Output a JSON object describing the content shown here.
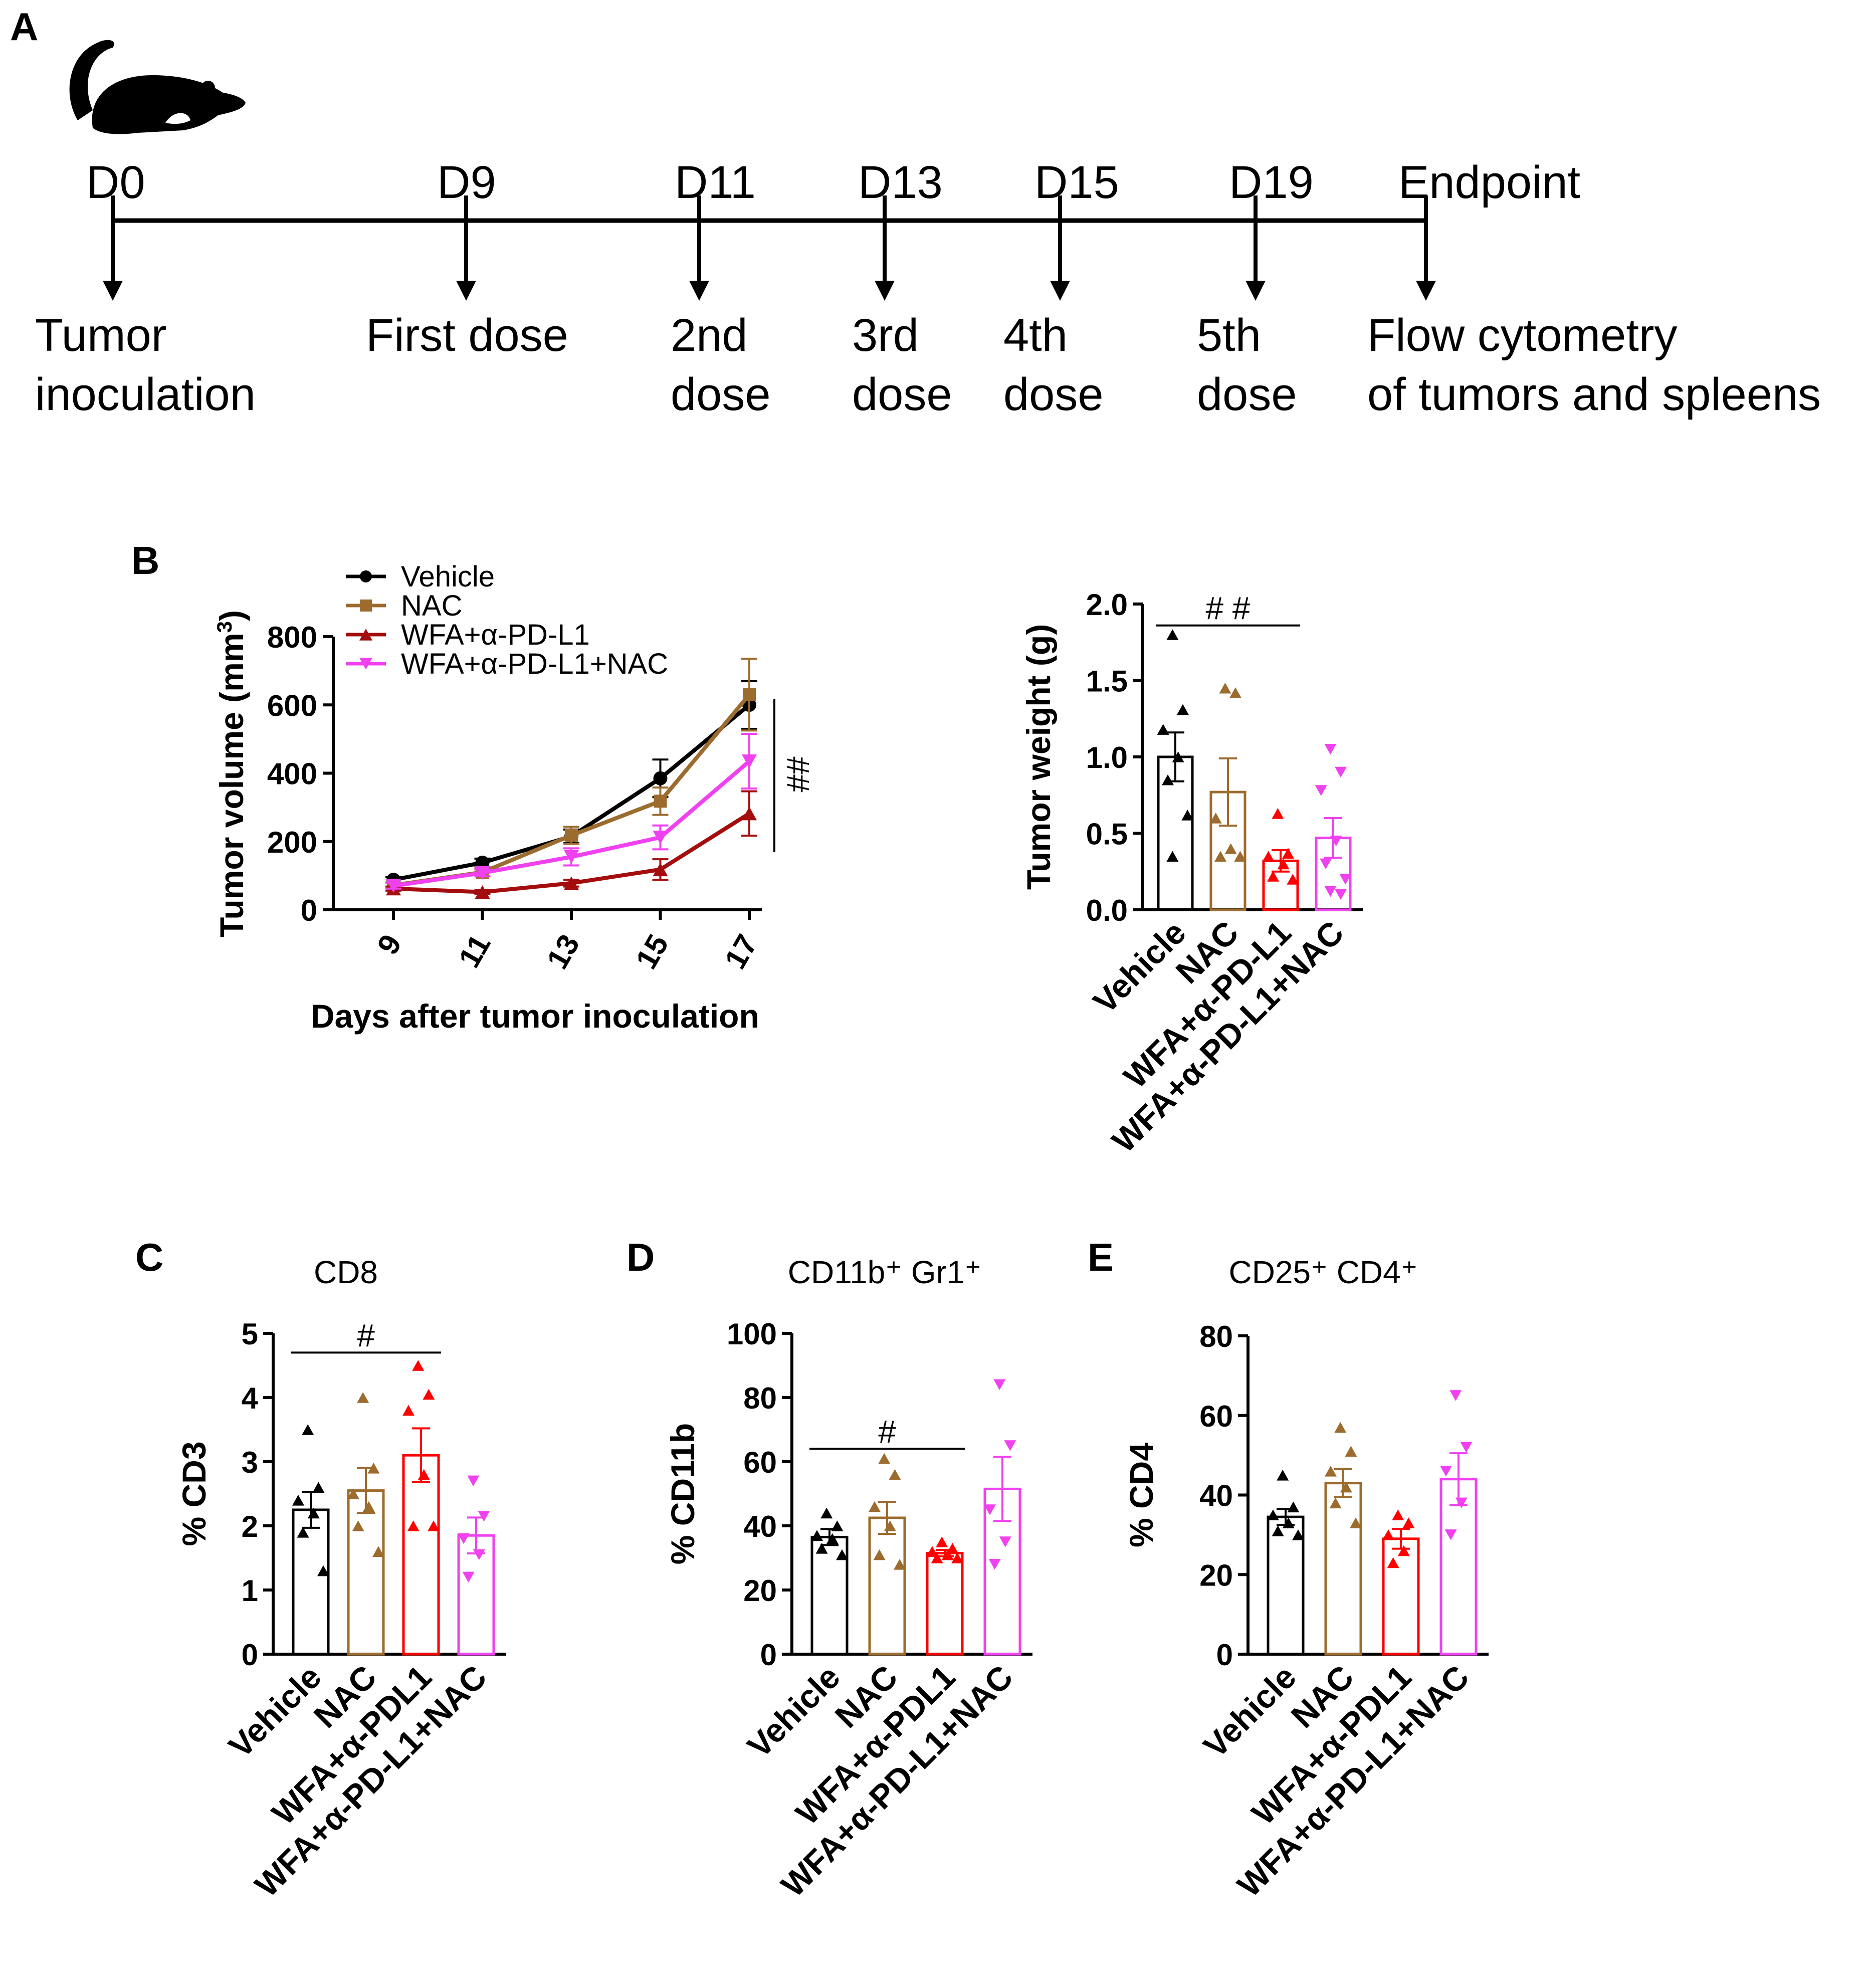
{
  "figure": {
    "panel_labels": [
      "A",
      "B",
      "C",
      "D",
      "E"
    ],
    "icon": "mouse-icon"
  },
  "timeline": {
    "days": [
      {
        "label": "D0",
        "event": [
          "Tumor",
          "inoculation"
        ]
      },
      {
        "label": "D9",
        "event": [
          "First dose"
        ]
      },
      {
        "label": "D11",
        "event": [
          "2nd",
          "dose"
        ]
      },
      {
        "label": "D13",
        "event": [
          "3rd",
          "dose"
        ]
      },
      {
        "label": "D15",
        "event": [
          "4th",
          "dose"
        ]
      },
      {
        "label": "D19",
        "event": [
          "5th",
          "dose"
        ]
      },
      {
        "label": "Endpoint",
        "event": [
          "Flow cytometry",
          "of tumors and spleens"
        ]
      }
    ]
  },
  "colors": {
    "Vehicle": "#000000",
    "NAC": "#9C6B2E",
    "WFA+α-PD-L1": "#A40D0D",
    "WFA+α-PD-L1+NAC": "#F041F0",
    "WFA_bar_red": "#FF0000"
  },
  "chart_data": [
    {
      "id": "B-left",
      "type": "line",
      "xlabel": "Days after tumor inoculation",
      "ylabel": "Tumor volume (mm",
      "ylabel_sup": "3",
      "ylabel_close": ")",
      "x": [
        9,
        11,
        13,
        15,
        17
      ],
      "ylim": [
        0,
        800
      ],
      "yticks": [
        0,
        200,
        400,
        600,
        800
      ],
      "legend": [
        "Vehicle",
        "NAC",
        "WFA+α-PD-L1",
        "WFA+α-PD-L1+NAC"
      ],
      "significance": "##",
      "series": [
        {
          "name": "Vehicle",
          "marker": "circle",
          "values": [
            88,
            138,
            215,
            385,
            600
          ],
          "err": [
            8,
            12,
            20,
            55,
            70
          ]
        },
        {
          "name": "NAC",
          "marker": "square",
          "values": [
            72,
            110,
            218,
            318,
            630
          ],
          "err": [
            8,
            12,
            25,
            40,
            105
          ]
        },
        {
          "name": "WFA+α-PD-L1",
          "marker": "triangle-up",
          "values": [
            62,
            52,
            78,
            118,
            282
          ],
          "err": [
            6,
            6,
            10,
            30,
            65
          ]
        },
        {
          "name": "WFA+α-PD-L1+NAC",
          "marker": "triangle-down",
          "values": [
            70,
            108,
            155,
            212,
            435
          ],
          "err": [
            8,
            10,
            25,
            35,
            80
          ]
        }
      ]
    },
    {
      "id": "B-right",
      "type": "bar",
      "ylabel": "Tumor weight (g)",
      "categories": [
        "Vehicle",
        "NAC",
        "WFA+α-PD-L1",
        "WFA+α-PD-L1+NAC"
      ],
      "ylim": [
        0,
        2.0
      ],
      "yticks": [
        "0.0",
        "0.5",
        "1.0",
        "1.5",
        "2.0"
      ],
      "significance": "# #",
      "sig_span": [
        0,
        2
      ],
      "bars": [
        {
          "name": "Vehicle",
          "mean": 1.0,
          "sem": 0.16,
          "marker": "triangle-up",
          "points": [
            1.8,
            1.31,
            1.18,
            1.0,
            0.85,
            0.62,
            0.35
          ]
        },
        {
          "name": "NAC",
          "mean": 0.77,
          "sem": 0.22,
          "marker": "triangle-up",
          "points": [
            1.45,
            1.42,
            0.6,
            0.4,
            0.35,
            0.35
          ]
        },
        {
          "name": "WFA+α-PD-L1",
          "mean": 0.32,
          "sem": 0.07,
          "marker": "triangle-up",
          "points": [
            0.63,
            0.37,
            0.35,
            0.3,
            0.22,
            0.2
          ]
        },
        {
          "name": "WFA+α-PD-L1+NAC",
          "mean": 0.47,
          "sem": 0.13,
          "marker": "triangle-down",
          "points": [
            1.05,
            0.9,
            0.78,
            0.45,
            0.3,
            0.2,
            0.12,
            0.1
          ]
        }
      ]
    },
    {
      "id": "C",
      "type": "bar",
      "title": "CD8",
      "ylabel": "% CD3",
      "categories": [
        "Vehicle",
        "NAC",
        "WFA+α-PDL1",
        "WFA+α-PD-L1+NAC"
      ],
      "ylim": [
        0,
        5
      ],
      "yticks": [
        "0",
        "1",
        "2",
        "3",
        "4",
        "5"
      ],
      "significance": "#",
      "sig_span": [
        0,
        2
      ],
      "bars": [
        {
          "name": "Vehicle",
          "mean": 2.25,
          "sem": 0.28,
          "marker": "triangle-up",
          "points": [
            3.5,
            2.6,
            2.4,
            2.2,
            1.9,
            1.3
          ]
        },
        {
          "name": "NAC",
          "mean": 2.55,
          "sem": 0.35,
          "marker": "triangle-up",
          "points": [
            4.0,
            2.9,
            2.5,
            2.3,
            2.0,
            1.6
          ]
        },
        {
          "name": "WFA+α-PDL1",
          "mean": 3.1,
          "sem": 0.42,
          "marker": "triangle-up",
          "points": [
            4.5,
            4.05,
            3.8,
            2.8,
            2.0,
            2.0
          ]
        },
        {
          "name": "WFA+α-PD-L1+NAC",
          "mean": 1.85,
          "sem": 0.28,
          "marker": "triangle-down",
          "points": [
            2.7,
            2.15,
            1.8,
            1.55,
            1.2
          ]
        }
      ]
    },
    {
      "id": "D",
      "type": "bar",
      "title": "CD11b⁺ Gr1⁺",
      "ylabel": "% CD11b",
      "categories": [
        "Vehicle",
        "NAC",
        "WFA+α-PDL1",
        "WFA+α-PD-L1+NAC"
      ],
      "ylim": [
        0,
        100
      ],
      "yticks": [
        "0",
        "20",
        "40",
        "60",
        "80",
        "100"
      ],
      "significance": "#",
      "sig_span": [
        0,
        2
      ],
      "bars": [
        {
          "name": "Vehicle",
          "mean": 36.5,
          "sem": 2.5,
          "marker": "triangle-up",
          "points": [
            44,
            40,
            37,
            36,
            33,
            31
          ]
        },
        {
          "name": "NAC",
          "mean": 42.5,
          "sem": 5.0,
          "marker": "triangle-up",
          "points": [
            61,
            56,
            46,
            40,
            31,
            28
          ]
        },
        {
          "name": "WFA+α-PDL1",
          "mean": 31.5,
          "sem": 1.0,
          "marker": "triangle-up",
          "points": [
            35,
            33,
            32,
            31,
            30,
            30
          ]
        },
        {
          "name": "WFA+α-PD-L1+NAC",
          "mean": 51.5,
          "sem": 10.0,
          "marker": "triangle-down",
          "points": [
            84,
            65,
            45,
            35,
            28
          ]
        }
      ]
    },
    {
      "id": "E",
      "type": "bar",
      "title": "CD25⁺ CD4⁺",
      "ylabel": "% CD4",
      "categories": [
        "Vehicle",
        "NAC",
        "WFA+α-PDL1",
        "WFA+α-PD-L1+NAC"
      ],
      "ylim": [
        0,
        80
      ],
      "yticks": [
        "0",
        "20",
        "40",
        "60",
        "80"
      ],
      "bars": [
        {
          "name": "Vehicle",
          "mean": 34.5,
          "sem": 2.0,
          "marker": "triangle-up",
          "points": [
            45,
            37,
            35,
            33,
            31,
            30
          ]
        },
        {
          "name": "NAC",
          "mean": 43.0,
          "sem": 3.5,
          "marker": "triangle-up",
          "points": [
            57,
            51,
            46,
            42,
            38,
            33
          ]
        },
        {
          "name": "WFA+α-PDL1",
          "mean": 29.0,
          "sem": 2.5,
          "marker": "triangle-up",
          "points": [
            35,
            33,
            30,
            26,
            23
          ]
        },
        {
          "name": "WFA+α-PD-L1+NAC",
          "mean": 44.0,
          "sem": 6.5,
          "marker": "triangle-down",
          "points": [
            65,
            52,
            46,
            38,
            30
          ]
        }
      ]
    }
  ]
}
